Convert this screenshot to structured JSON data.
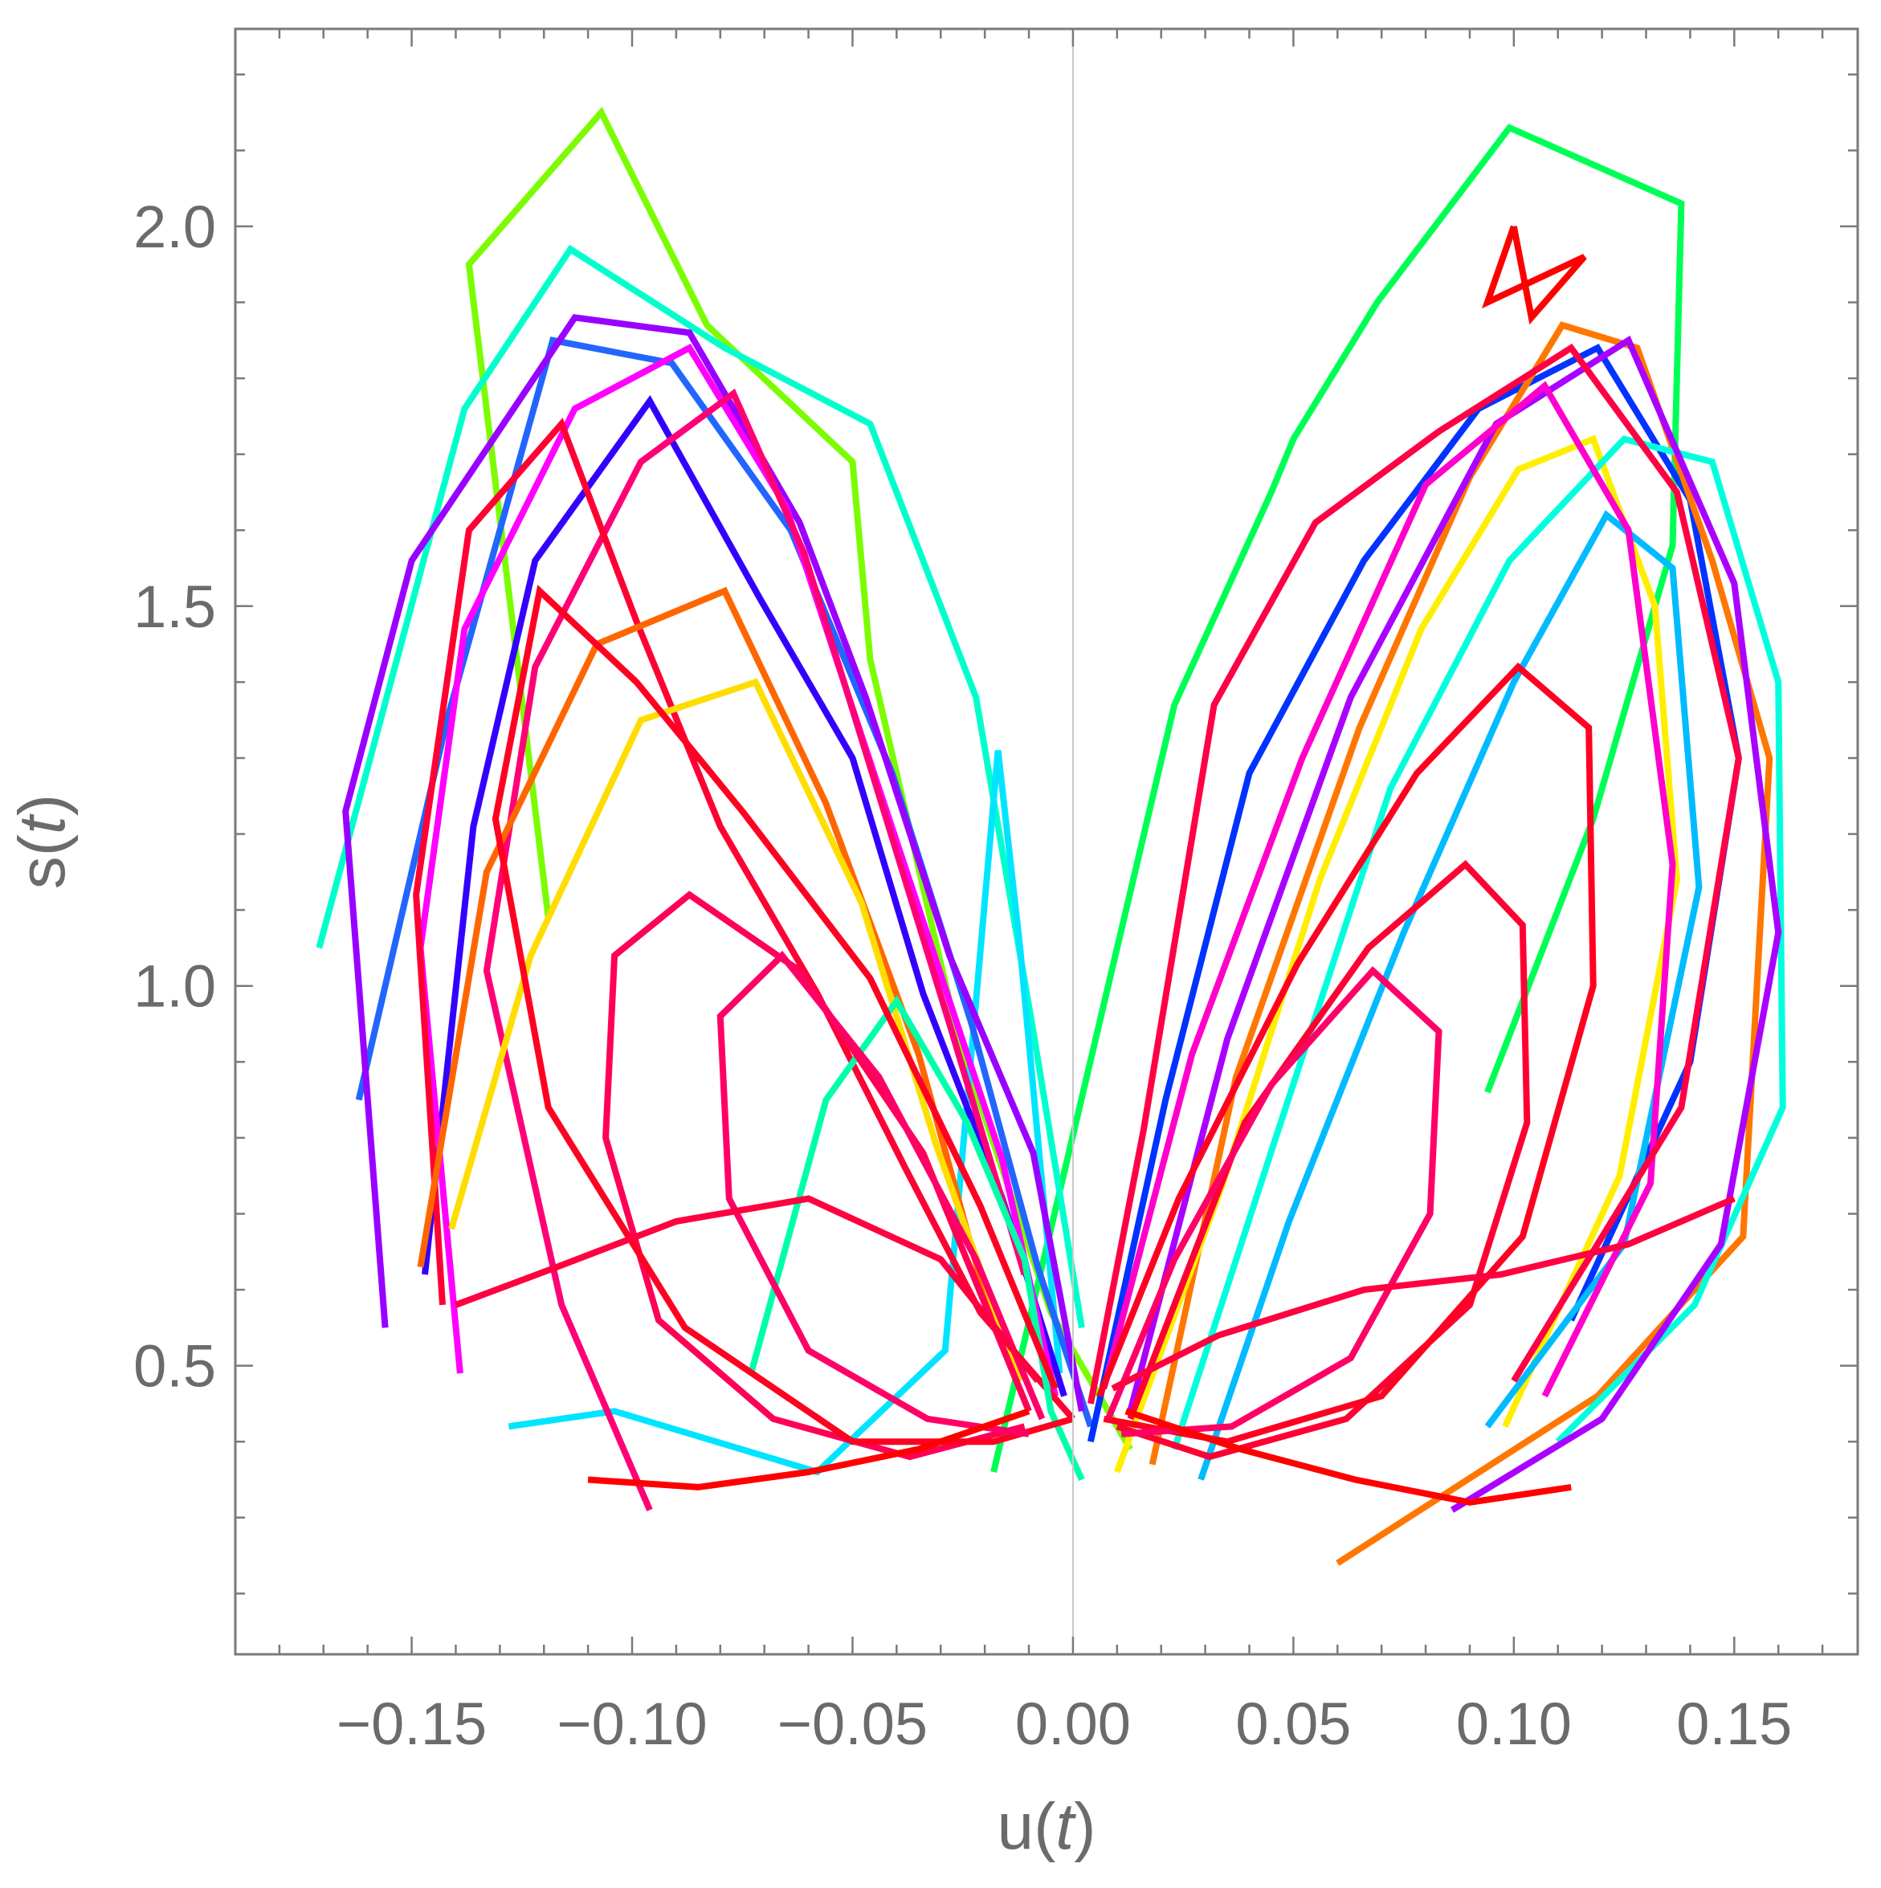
{
  "chart_data": {
    "type": "line",
    "xlabel": {
      "prefix": "u(",
      "var": "t",
      "suffix": ")"
    },
    "ylabel": {
      "prefix": "s(",
      "var": "t",
      "suffix": ")"
    },
    "xlim": [
      -0.19,
      0.178
    ],
    "ylim": [
      0.12,
      2.26
    ],
    "x_ticks": [
      {
        "value": -0.15,
        "label": "−0.15"
      },
      {
        "value": -0.1,
        "label": "−0.10"
      },
      {
        "value": -0.05,
        "label": "−0.05"
      },
      {
        "value": 0.0,
        "label": "0.00"
      },
      {
        "value": 0.05,
        "label": "0.05"
      },
      {
        "value": 0.1,
        "label": "0.10"
      },
      {
        "value": 0.15,
        "label": "0.15"
      }
    ],
    "y_ticks": [
      {
        "value": 0.5,
        "label": "0.5"
      },
      {
        "value": 1.0,
        "label": "1.0"
      },
      {
        "value": 1.5,
        "label": "1.5"
      },
      {
        "value": 2.0,
        "label": "2.0"
      }
    ],
    "grid": false,
    "frame_color": "#7a7a7a",
    "zero_line_color": "#c8c8c8",
    "series_colors": [
      "#7cfc00",
      "#00ff66",
      "#00ffd5",
      "#00bfff",
      "#0055ff",
      "#3300ff",
      "#9900ff",
      "#ff00ff",
      "#ff0088",
      "#ff0033",
      "#ff7700",
      "#ffe600"
    ],
    "series": [
      {
        "color": "#7cfc00",
        "x": [
          -0.119,
          -0.137,
          -0.107,
          -0.083,
          -0.05,
          -0.046,
          -0.026,
          -0.005,
          0.013
        ],
        "y": [
          1.09,
          1.95,
          2.15,
          1.87,
          1.69,
          1.43,
          0.93,
          0.57,
          0.39
        ]
      },
      {
        "color": "#00ff55",
        "x": [
          -0.018,
          0.023,
          0.045,
          0.05,
          0.069,
          0.099,
          0.138,
          0.136,
          0.118,
          0.094
        ],
        "y": [
          0.36,
          1.37,
          1.65,
          1.72,
          1.9,
          2.13,
          2.03,
          1.58,
          1.22,
          0.86
        ]
      },
      {
        "color": "#00ffcc",
        "x": [
          -0.171,
          -0.138,
          -0.114,
          -0.079,
          -0.046,
          -0.022,
          -0.009,
          0.002
        ],
        "y": [
          1.05,
          1.76,
          1.97,
          1.84,
          1.74,
          1.38,
          0.94,
          0.55
        ]
      },
      {
        "color": "#00e5ff",
        "x": [
          -0.128,
          -0.104,
          -0.058,
          -0.029,
          -0.022,
          -0.017,
          -0.012,
          -0.003
        ],
        "y": [
          0.42,
          0.44,
          0.36,
          0.52,
          0.98,
          1.31,
          1.05,
          0.49
        ]
      },
      {
        "color": "#2266ff",
        "x": [
          -0.162,
          -0.142,
          -0.118,
          -0.091,
          -0.064,
          -0.041,
          -0.023,
          -0.008,
          0.004
        ],
        "y": [
          0.85,
          1.35,
          1.85,
          1.82,
          1.6,
          1.28,
          0.95,
          0.63,
          0.42
        ]
      },
      {
        "color": "#3300ff",
        "x": [
          -0.147,
          -0.136,
          -0.122,
          -0.096,
          -0.071,
          -0.05,
          -0.034,
          -0.016,
          -0.002
        ],
        "y": [
          0.62,
          1.21,
          1.56,
          1.77,
          1.51,
          1.3,
          0.99,
          0.72,
          0.46
        ]
      },
      {
        "color": "#9900ff",
        "x": [
          -0.156,
          -0.165,
          -0.15,
          -0.113,
          -0.087,
          -0.062,
          -0.047,
          -0.028,
          -0.009,
          0.002
        ],
        "y": [
          0.55,
          1.23,
          1.56,
          1.88,
          1.86,
          1.61,
          1.38,
          1.04,
          0.78,
          0.44
        ]
      },
      {
        "color": "#ff00ff",
        "x": [
          -0.139,
          -0.148,
          -0.138,
          -0.113,
          -0.087,
          -0.065,
          -0.048,
          -0.032,
          -0.016,
          -0.004
        ],
        "y": [
          0.49,
          1.05,
          1.47,
          1.76,
          1.84,
          1.63,
          1.33,
          1.05,
          0.77,
          0.46
        ]
      },
      {
        "color": "#ff0077",
        "x": [
          -0.096,
          -0.116,
          -0.133,
          -0.122,
          -0.098,
          -0.077,
          -0.061,
          -0.045,
          -0.028,
          -0.011
        ],
        "y": [
          0.31,
          0.58,
          1.02,
          1.42,
          1.69,
          1.78,
          1.57,
          1.27,
          0.95,
          0.62
        ]
      },
      {
        "color": "#ff0033",
        "x": [
          -0.143,
          -0.149,
          -0.137,
          -0.116,
          -0.099,
          -0.08,
          -0.058,
          -0.038,
          -0.021,
          0.0
        ],
        "y": [
          0.58,
          1.12,
          1.6,
          1.74,
          1.48,
          1.21,
          0.99,
          0.76,
          0.57,
          0.43
        ]
      },
      {
        "color": "#ff6600",
        "x": [
          -0.148,
          -0.133,
          -0.108,
          -0.079,
          -0.056,
          -0.035,
          -0.018
        ],
        "y": [
          0.63,
          1.15,
          1.45,
          1.52,
          1.24,
          0.91,
          0.55
        ]
      },
      {
        "color": "#ffdd00",
        "x": [
          -0.141,
          -0.123,
          -0.098,
          -0.072,
          -0.048,
          -0.031,
          -0.012
        ],
        "y": [
          0.68,
          1.04,
          1.35,
          1.4,
          1.11,
          0.79,
          0.48
        ]
      },
      {
        "color": "#00ffaa",
        "x": [
          -0.073,
          -0.056,
          -0.04,
          -0.024,
          -0.011,
          -0.005,
          0.002
        ],
        "y": [
          0.49,
          0.85,
          0.98,
          0.82,
          0.64,
          0.44,
          0.35
        ]
      },
      {
        "color": "#0033ff",
        "x": [
          0.004,
          0.021,
          0.04,
          0.066,
          0.092,
          0.119,
          0.14,
          0.151,
          0.14,
          0.113
        ],
        "y": [
          0.4,
          0.85,
          1.28,
          1.56,
          1.76,
          1.84,
          1.64,
          1.3,
          0.9,
          0.56
        ]
      },
      {
        "color": "#ff7700",
        "x": [
          0.018,
          0.037,
          0.065,
          0.09,
          0.111,
          0.128,
          0.145,
          0.158,
          0.152,
          0.119,
          0.06
        ],
        "y": [
          0.37,
          0.88,
          1.34,
          1.67,
          1.87,
          1.84,
          1.56,
          1.3,
          0.67,
          0.46,
          0.24
        ]
      },
      {
        "color": "#ffee00",
        "x": [
          0.01,
          0.034,
          0.056,
          0.079,
          0.101,
          0.118,
          0.132,
          0.137,
          0.124,
          0.098
        ],
        "y": [
          0.36,
          0.74,
          1.14,
          1.47,
          1.68,
          1.72,
          1.5,
          1.14,
          0.75,
          0.42
        ]
      },
      {
        "color": "#00ffdd",
        "x": [
          0.023,
          0.046,
          0.072,
          0.099,
          0.125,
          0.145,
          0.16,
          0.161,
          0.141,
          0.11
        ],
        "y": [
          0.39,
          0.8,
          1.26,
          1.56,
          1.72,
          1.69,
          1.4,
          0.84,
          0.58,
          0.4
        ]
      },
      {
        "color": "#00bbff",
        "x": [
          0.029,
          0.049,
          0.075,
          0.1,
          0.121,
          0.136,
          0.142,
          0.125,
          0.094
        ],
        "y": [
          0.35,
          0.69,
          1.07,
          1.4,
          1.62,
          1.55,
          1.13,
          0.66,
          0.42
        ]
      },
      {
        "color": "#aa00ff",
        "x": [
          0.013,
          0.035,
          0.063,
          0.096,
          0.126,
          0.15,
          0.16,
          0.147,
          0.12,
          0.086
        ],
        "y": [
          0.44,
          0.93,
          1.38,
          1.74,
          1.85,
          1.53,
          1.07,
          0.66,
          0.43,
          0.31
        ]
      },
      {
        "color": "#ff00cc",
        "x": [
          0.007,
          0.027,
          0.052,
          0.08,
          0.107,
          0.126,
          0.136,
          0.131,
          0.107
        ],
        "y": [
          0.47,
          0.91,
          1.3,
          1.66,
          1.79,
          1.6,
          1.16,
          0.74,
          0.46
        ]
      },
      {
        "color": "#ff0044",
        "x": [
          0.004,
          0.016,
          0.032,
          0.055,
          0.083,
          0.113,
          0.137,
          0.151,
          0.138,
          0.1
        ],
        "y": [
          0.45,
          0.81,
          1.37,
          1.61,
          1.73,
          1.84,
          1.65,
          1.3,
          0.84,
          0.48
        ]
      },
      {
        "color": "#ff0000",
        "x": [
          0.1,
          0.104,
          0.116,
          0.094,
          0.1
        ],
        "y": [
          2.0,
          1.88,
          1.96,
          1.9,
          2.0
        ]
      },
      {
        "color": "#ff0033",
        "x": [
          0.013,
          0.039,
          0.067,
          0.089,
          0.102,
          0.103,
          0.09,
          0.062,
          0.031,
          0.01
        ],
        "y": [
          0.43,
          0.82,
          1.05,
          1.16,
          1.08,
          0.82,
          0.58,
          0.43,
          0.38,
          0.42
        ]
      },
      {
        "color": "#ff0055",
        "x": [
          -0.01,
          -0.034,
          -0.062,
          -0.087,
          -0.104,
          -0.106,
          -0.094,
          -0.068,
          -0.037,
          -0.011
        ],
        "y": [
          0.44,
          0.78,
          1.02,
          1.12,
          1.04,
          0.8,
          0.56,
          0.43,
          0.38,
          0.42
        ]
      },
      {
        "color": "#ff0022",
        "x": [
          -0.004,
          -0.021,
          -0.046,
          -0.075,
          -0.099,
          -0.121,
          -0.131,
          -0.119,
          -0.088,
          -0.05,
          -0.018,
          0.0
        ],
        "y": [
          0.47,
          0.71,
          1.01,
          1.23,
          1.4,
          1.52,
          1.22,
          0.84,
          0.55,
          0.4,
          0.4,
          0.43
        ]
      },
      {
        "color": "#ff0022",
        "x": [
          0.006,
          0.024,
          0.051,
          0.078,
          0.101,
          0.117,
          0.118,
          0.102,
          0.07,
          0.035,
          0.007
        ],
        "y": [
          0.46,
          0.72,
          1.03,
          1.28,
          1.42,
          1.34,
          1.0,
          0.67,
          0.46,
          0.4,
          0.43
        ]
      },
      {
        "color": "#ff0066",
        "x": [
          -0.007,
          -0.022,
          -0.044,
          -0.066,
          -0.08,
          -0.078,
          -0.06,
          -0.033,
          -0.01
        ],
        "y": [
          0.43,
          0.64,
          0.88,
          1.04,
          0.96,
          0.72,
          0.52,
          0.43,
          0.41
        ]
      },
      {
        "color": "#ff0066",
        "x": [
          0.008,
          0.023,
          0.045,
          0.068,
          0.083,
          0.081,
          0.063,
          0.036,
          0.011
        ],
        "y": [
          0.43,
          0.64,
          0.87,
          1.02,
          0.94,
          0.7,
          0.51,
          0.42,
          0.41
        ]
      },
      {
        "color": "#ff0040",
        "x": [
          -0.14,
          -0.117,
          -0.09,
          -0.06,
          -0.03,
          -0.008
        ],
        "y": [
          0.58,
          0.63,
          0.69,
          0.72,
          0.64,
          0.48
        ]
      },
      {
        "color": "#ff0040",
        "x": [
          0.15,
          0.126,
          0.097,
          0.066,
          0.033,
          0.009
        ],
        "y": [
          0.72,
          0.66,
          0.62,
          0.6,
          0.54,
          0.47
        ]
      },
      {
        "color": "#ff0000",
        "x": [
          -0.11,
          -0.085,
          -0.06,
          -0.035,
          -0.01
        ],
        "y": [
          0.35,
          0.34,
          0.36,
          0.39,
          0.44
        ]
      },
      {
        "color": "#ff0000",
        "x": [
          0.113,
          0.09,
          0.064,
          0.038,
          0.012
        ],
        "y": [
          0.34,
          0.32,
          0.35,
          0.39,
          0.44
        ]
      }
    ]
  }
}
